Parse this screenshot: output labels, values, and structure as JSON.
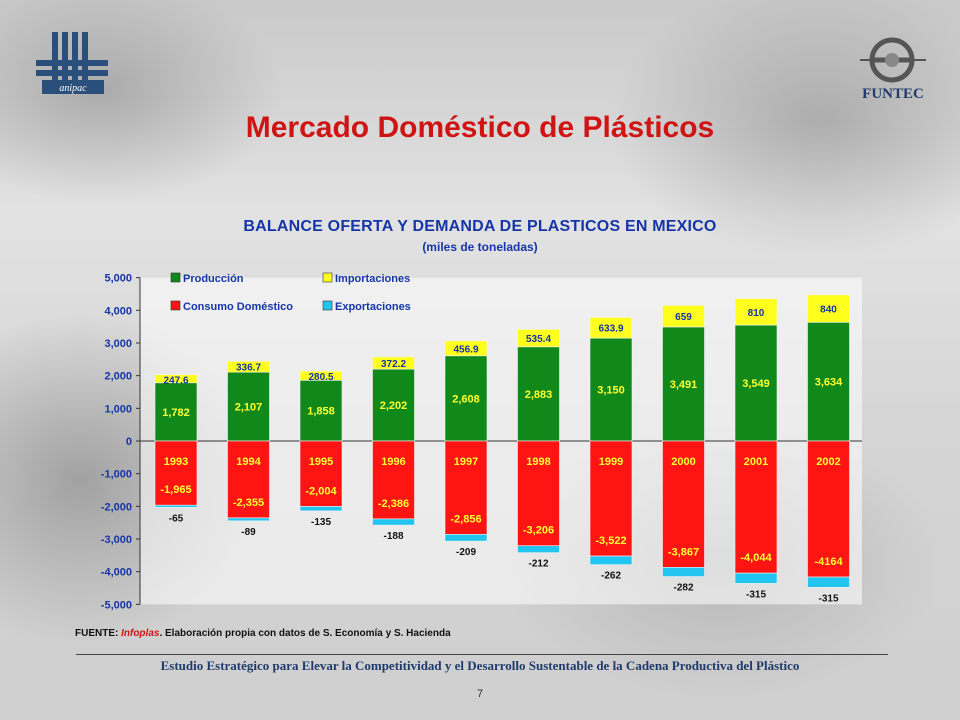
{
  "slide": {
    "title": "Mercado Doméstico de Plásticos",
    "right_logo_text": "FUNTEC",
    "left_logo_text": "anipac",
    "source_prefix": "FUENTE: ",
    "source_highlight": "Infoplas",
    "source_rest": ". Elaboración propia con datos de S. Economía y S. Hacienda",
    "footer": "Estudio Estratégico para Elevar la Competitividad y el Desarrollo Sustentable de la Cadena Productiva del Plástico",
    "page_number": "7"
  },
  "colors": {
    "produccion": "#11881a",
    "importaciones": "#ffff1e",
    "consumo": "#ff1414",
    "exportaciones": "#22c4f0",
    "title_red": "#d01414",
    "chart_blue": "#1535a8"
  },
  "chart_data": {
    "type": "bar",
    "title": "BALANCE OFERTA Y DEMANDA DE PLASTICOS EN MEXICO",
    "subtitle": "(miles de toneladas)",
    "stacked": true,
    "categories": [
      "1993",
      "1994",
      "1995",
      "1996",
      "1997",
      "1998",
      "1999",
      "2000",
      "2001",
      "2002"
    ],
    "ylim": [
      -5000,
      5000
    ],
    "yticks": [
      5000,
      4000,
      3000,
      2000,
      1000,
      0,
      -1000,
      -2000,
      -3000,
      -4000,
      -5000
    ],
    "ytick_labels": [
      "5,000",
      "4,000",
      "3,000",
      "2,000",
      "1,000",
      "0",
      "-1,000",
      "-2,000",
      "-3,000",
      "-4,000",
      "-5,000"
    ],
    "legend_position": "top-left",
    "series": [
      {
        "name": "Producción",
        "key": "produccion",
        "values": [
          1782,
          2107,
          1858,
          2202,
          2608,
          2883,
          3150,
          3491,
          3549,
          3634
        ],
        "labels": [
          "1,782",
          "2,107",
          "1,858",
          "2,202",
          "2,608",
          "2,883",
          "3,150",
          "3,491",
          "3,549",
          "3,634"
        ]
      },
      {
        "name": "Importaciones",
        "key": "importaciones",
        "values": [
          247.6,
          336.7,
          280.5,
          372.2,
          456.9,
          535.4,
          633.9,
          659,
          810,
          840
        ],
        "labels": [
          "247.6",
          "336.7",
          "280.5",
          "372.2",
          "456.9",
          "535.4",
          "633.9",
          "659",
          "810",
          "840"
        ]
      },
      {
        "name": "Consumo Doméstico",
        "key": "consumo",
        "values": [
          -1965,
          -2355,
          -2004,
          -2386,
          -2856,
          -3206,
          -3522,
          -3867,
          -4044,
          -4164
        ],
        "labels": [
          "-1,965",
          "-2,355",
          "-2,004",
          "-2,386",
          "-2,856",
          "-3,206",
          "-3,522",
          "-3,867",
          "-4,044",
          "-4164"
        ]
      },
      {
        "name": "Exportaciones",
        "key": "exportaciones",
        "values": [
          -65,
          -89,
          -135,
          -188,
          -209,
          -212,
          -262,
          -282,
          -315,
          -315
        ],
        "labels": [
          "-65",
          "-89",
          "-135",
          "-188",
          "-209",
          "-212",
          "-262",
          "-282",
          "-315",
          "-315"
        ]
      }
    ]
  }
}
